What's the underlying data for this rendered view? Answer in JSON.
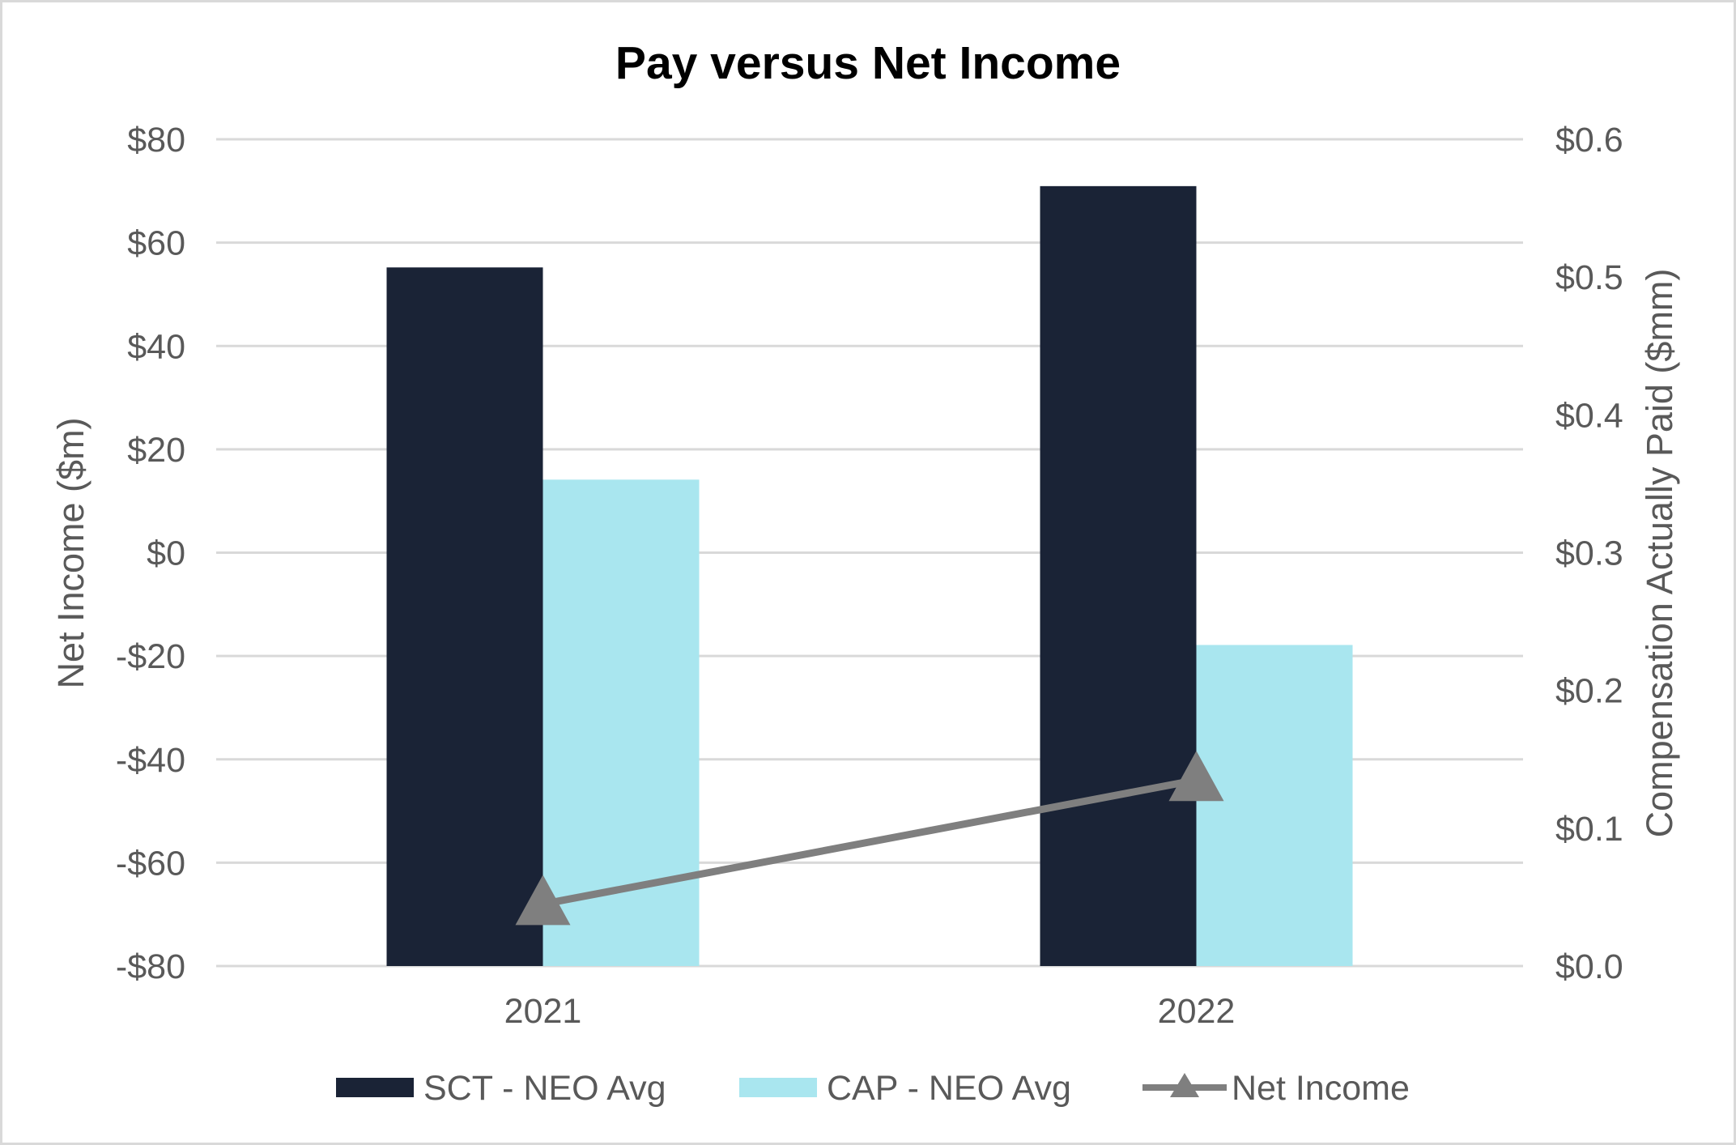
{
  "chart_data": {
    "type": "bar",
    "title": "Pay versus Net Income",
    "categories": [
      "2021",
      "2022"
    ],
    "y_left": {
      "label": "Net Income ($m)",
      "range": [
        -80,
        80
      ],
      "ticks": [
        "$80",
        "$60",
        "$40",
        "$20",
        "$0",
        "-$20",
        "-$40",
        "-$60",
        "-$80"
      ],
      "tick_values": [
        80,
        60,
        40,
        20,
        0,
        -20,
        -40,
        -60,
        -80
      ]
    },
    "y_right": {
      "label": "Compensation Actually Paid ($mm)",
      "range": [
        0,
        0.6
      ],
      "ticks": [
        "$0.6",
        "$0.5",
        "$0.4",
        "$0.3",
        "$0.2",
        "$0.1",
        "$0.0"
      ],
      "tick_values": [
        0.6,
        0.5,
        0.4,
        0.3,
        0.2,
        0.1,
        0.0
      ]
    },
    "series": [
      {
        "name": "SCT - NEO Avg",
        "type": "bar",
        "axis": "right",
        "color": "#1a2336",
        "values": [
          0.507,
          0.566
        ]
      },
      {
        "name": "CAP - NEO Avg",
        "type": "bar",
        "axis": "right",
        "color": "#a9e6ef",
        "values": [
          0.353,
          0.233
        ]
      },
      {
        "name": "Net Income",
        "type": "line",
        "marker": "triangle",
        "axis": "left",
        "color": "#7f7f7f",
        "values": [
          -68,
          -44
        ]
      }
    ],
    "grid": true,
    "legend_position": "bottom"
  }
}
